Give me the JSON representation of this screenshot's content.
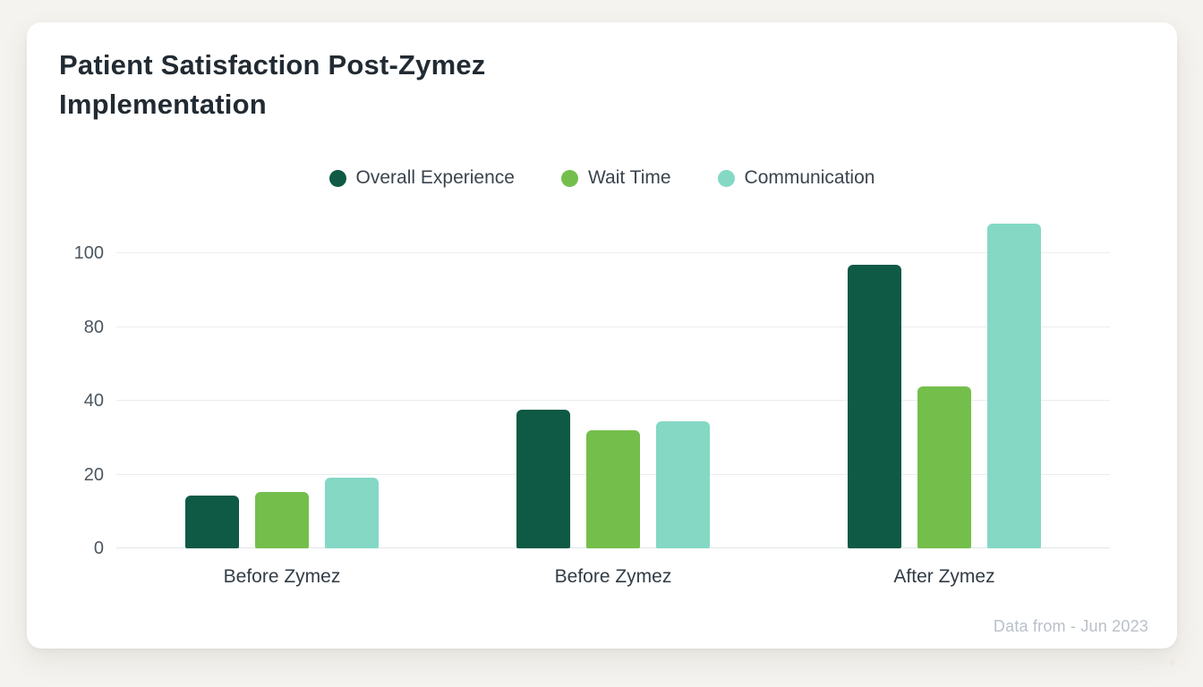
{
  "chart_data": {
    "type": "bar",
    "title": "Patient Satisfaction Post-Zymez Implementation",
    "categories": [
      "Before Zymez",
      "Before Zymez",
      "After Zymez"
    ],
    "series": [
      {
        "name": "Overall Experience",
        "color": "#0e5a44",
        "values": [
          18,
          47,
          96
        ]
      },
      {
        "name": "Wait Time",
        "color": "#74bf4c",
        "values": [
          19,
          40,
          55
        ]
      },
      {
        "name": "Communication",
        "color": "#84d8c4",
        "values": [
          24,
          43,
          110
        ]
      }
    ],
    "y_ticks": [
      "0",
      "20",
      "40",
      "80",
      "100"
    ],
    "ylim": [
      0,
      110
    ],
    "grid": true,
    "legend_position": "top",
    "footnote": "Data from - Jun 2023"
  },
  "decor": {
    "sparkle": "✦"
  }
}
